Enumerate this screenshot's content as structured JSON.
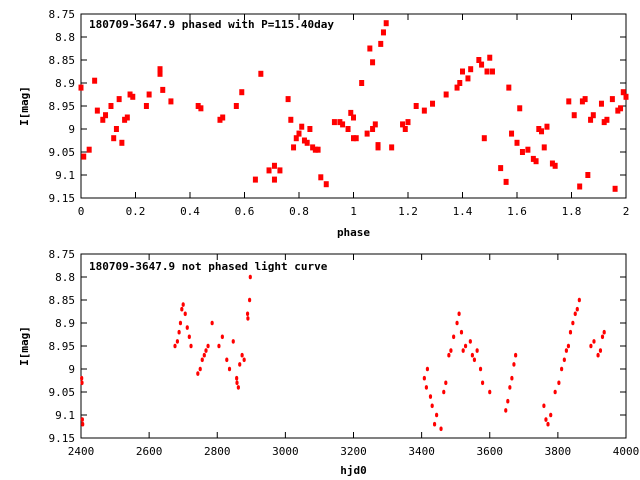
{
  "chart_data": [
    {
      "type": "scatter",
      "title": "180709-3647.9 phased with P=115.40day",
      "xlabel": "phase",
      "ylabel": "I[mag]",
      "xlim": [
        0,
        2
      ],
      "ylim": [
        8.75,
        9.15
      ],
      "y_inverted": true,
      "xticks": [
        "0",
        "0.2",
        "0.4",
        "0.6",
        "0.8",
        "1",
        "1.2",
        "1.4",
        "1.6",
        "1.8",
        "2"
      ],
      "yticks": [
        "8.75",
        "8.8",
        "8.85",
        "8.9",
        "8.95",
        "9",
        "9.05",
        "9.1",
        "9.15"
      ],
      "marker_color": "#ff0000",
      "series": [
        {
          "x": [
            0.0,
            0.01,
            0.03,
            0.05,
            0.06,
            0.08,
            0.09,
            0.11,
            0.12,
            0.13,
            0.14,
            0.15,
            0.16,
            0.17,
            0.18,
            0.19,
            0.24,
            0.25,
            0.29,
            0.29,
            0.3,
            0.33,
            0.43,
            0.44,
            0.51,
            0.52,
            0.57,
            0.59,
            0.64,
            0.66,
            0.69,
            0.71,
            0.71,
            0.73,
            0.76,
            0.77,
            0.78,
            0.79,
            0.8,
            0.81,
            0.82,
            0.83,
            0.84,
            0.85,
            0.86,
            0.87,
            0.88,
            0.9,
            0.93,
            0.95,
            0.96,
            0.98,
            0.99,
            1.0,
            1.0,
            1.01,
            1.03,
            1.05,
            1.06,
            1.07,
            1.07,
            1.08,
            1.09,
            1.09,
            1.1,
            1.11,
            1.12,
            1.14,
            1.18,
            1.19,
            1.2,
            1.23,
            1.26,
            1.29,
            1.34,
            1.38,
            1.39,
            1.4,
            1.42,
            1.43,
            1.46,
            1.47,
            1.48,
            1.49,
            1.5,
            1.51,
            1.54,
            1.56,
            1.57,
            1.58,
            1.6,
            1.61,
            1.62,
            1.64,
            1.66,
            1.67,
            1.68,
            1.69,
            1.7,
            1.71,
            1.73,
            1.74,
            1.79,
            1.81,
            1.83,
            1.84,
            1.85,
            1.86,
            1.87,
            1.88,
            1.91,
            1.92,
            1.93,
            1.95,
            1.96,
            1.97,
            1.98,
            1.99,
            2.0
          ],
          "y": [
            8.91,
            9.06,
            9.045,
            8.895,
            8.96,
            8.98,
            8.97,
            8.95,
            9.02,
            9.0,
            8.935,
            9.03,
            8.98,
            8.975,
            8.925,
            8.93,
            8.95,
            8.925,
            8.87,
            8.88,
            8.915,
            8.94,
            8.95,
            8.955,
            8.98,
            8.975,
            8.95,
            8.92,
            9.11,
            8.88,
            9.09,
            9.11,
            9.08,
            9.09,
            8.935,
            8.98,
            9.04,
            9.02,
            9.01,
            8.995,
            9.025,
            9.03,
            9.0,
            9.04,
            9.045,
            9.045,
            9.105,
            9.12,
            8.985,
            8.985,
            8.99,
            9.0,
            8.965,
            8.975,
            9.02,
            9.02,
            8.9,
            9.01,
            8.825,
            8.855,
            9.0,
            8.99,
            9.04,
            9.035,
            8.815,
            8.79,
            8.77,
            9.04,
            8.99,
            9.0,
            8.985,
            8.95,
            8.96,
            8.945,
            8.925,
            8.91,
            8.9,
            8.875,
            8.89,
            8.87,
            8.85,
            8.86,
            9.02,
            8.875,
            8.845,
            8.875,
            9.085,
            9.115,
            8.91,
            9.01,
            9.03,
            8.955,
            9.05,
            9.045,
            9.065,
            9.07,
            9.0,
            9.005,
            9.04,
            8.995,
            9.075,
            9.08,
            8.94,
            8.97,
            9.125,
            8.94,
            8.935,
            9.1,
            8.98,
            8.97,
            8.945,
            8.985,
            8.98,
            8.935,
            9.13,
            8.96,
            8.955,
            8.92,
            8.93
          ]
        }
      ]
    },
    {
      "type": "scatter",
      "title": "180709-3647.9 not phased light curve",
      "xlabel": "hjd0",
      "ylabel": "I[mag]",
      "xlim": [
        2400,
        4000
      ],
      "ylim": [
        8.75,
        9.15
      ],
      "y_inverted": true,
      "xticks": [
        "2400",
        "2600",
        "2800",
        "3000",
        "3200",
        "3400",
        "3600",
        "3800",
        "4000"
      ],
      "yticks": [
        "8.75",
        "8.8",
        "8.85",
        "8.9",
        "8.95",
        "9",
        "9.05",
        "9.1",
        "9.15"
      ],
      "marker_color": "#ff0000",
      "series": [
        {
          "x": [
            2402,
            2403,
            2404,
            2405,
            2676,
            2683,
            2688,
            2692,
            2696,
            2700,
            2706,
            2712,
            2718,
            2723,
            2743,
            2750,
            2756,
            2762,
            2767,
            2773,
            2785,
            2805,
            2815,
            2828,
            2836,
            2847,
            2857,
            2858,
            2862,
            2866,
            2873,
            2879,
            2889,
            2890,
            2895,
            2897,
            3408,
            3414,
            3417,
            3426,
            3431,
            3438,
            3444,
            3457,
            3465,
            3471,
            3480,
            3486,
            3494,
            3504,
            3510,
            3517,
            3522,
            3529,
            3543,
            3549,
            3555,
            3563,
            3573,
            3579,
            3600,
            3647,
            3653,
            3659,
            3665,
            3671,
            3676,
            3759,
            3765,
            3771,
            3779,
            3792,
            3803,
            3811,
            3819,
            3825,
            3831,
            3837,
            3844,
            3851,
            3857,
            3863,
            3897,
            3906,
            3918,
            3925,
            3931,
            3936
          ],
          "y": [
            9.02,
            9.03,
            9.11,
            9.12,
            8.95,
            8.94,
            8.92,
            8.9,
            8.87,
            8.86,
            8.88,
            8.91,
            8.93,
            8.95,
            9.01,
            9.0,
            8.98,
            8.97,
            8.96,
            8.95,
            8.9,
            8.95,
            8.93,
            8.98,
            9.0,
            8.94,
            9.02,
            9.03,
            9.04,
            8.99,
            8.97,
            8.98,
            8.88,
            8.89,
            8.85,
            8.8,
            9.02,
            9.04,
            9.0,
            9.06,
            9.08,
            9.12,
            9.1,
            9.13,
            9.05,
            9.03,
            8.97,
            8.96,
            8.93,
            8.9,
            8.88,
            8.92,
            8.96,
            8.95,
            8.94,
            8.97,
            8.98,
            8.96,
            9.0,
            9.03,
            9.05,
            9.09,
            9.07,
            9.04,
            9.02,
            8.99,
            8.97,
            9.08,
            9.11,
            9.12,
            9.1,
            9.05,
            9.03,
            9.0,
            8.98,
            8.96,
            8.95,
            8.92,
            8.9,
            8.88,
            8.87,
            8.85,
            8.95,
            8.94,
            8.97,
            8.96,
            8.93,
            8.92
          ]
        }
      ]
    }
  ]
}
